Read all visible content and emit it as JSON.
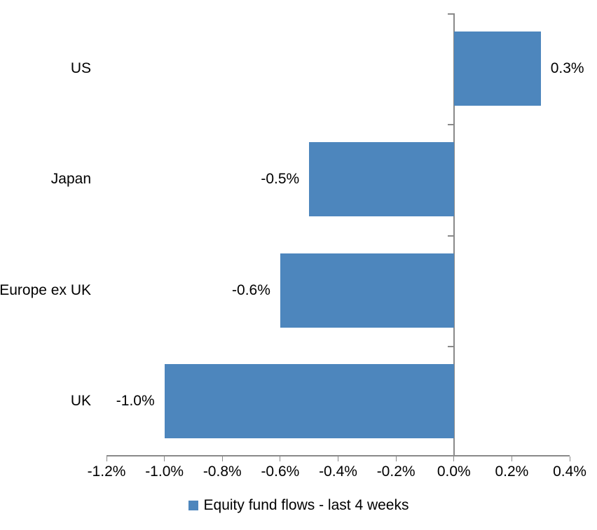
{
  "chart_data": {
    "type": "bar",
    "orientation": "horizontal",
    "title": "",
    "categories": [
      "US",
      "Japan",
      "Europe ex UK",
      "UK"
    ],
    "values": [
      0.3,
      -0.5,
      -0.6,
      -1.0
    ],
    "value_labels": [
      "0.3%",
      "-0.5%",
      "-0.6%",
      "-1.0%"
    ],
    "series_name": "Equity fund flows - last 4 weeks",
    "unit": "%",
    "xlim": [
      -1.2,
      0.4
    ],
    "x_tick_values": [
      -1.2,
      -1.0,
      -0.8,
      -0.6,
      -0.4,
      -0.2,
      0.0,
      0.2,
      0.4
    ],
    "x_tick_labels": [
      "-1.2%",
      "-1.0%",
      "-0.8%",
      "-0.6%",
      "-0.4%",
      "-0.2%",
      "0.0%",
      "0.2%",
      "0.4%"
    ],
    "grid": false,
    "legend_position": "bottom",
    "bar_color": "#4D86BD",
    "axis_color": "#898989",
    "text_color": "#000000",
    "background_color": "#FFFFFF"
  }
}
